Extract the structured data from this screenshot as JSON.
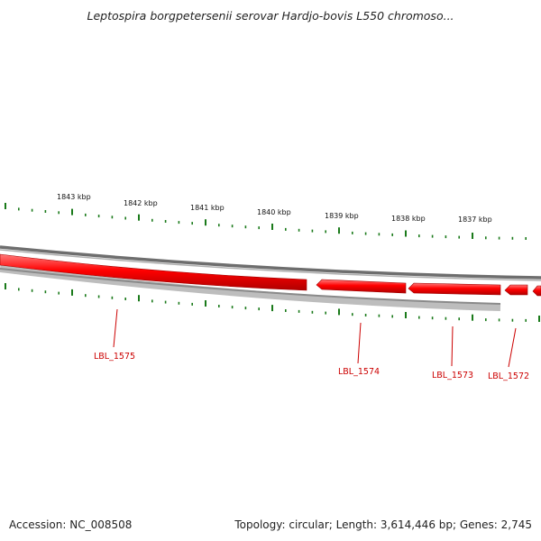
{
  "title": "Leptospira borgpetersenii serovar Hardjo-bovis L550 chromoso...",
  "accession_label": "Accession: NC_008508",
  "summary_label": "Topology: circular; Length: 3,614,446 bp; Genes: 2,745",
  "colors": {
    "gene": "#ff0000",
    "gene_dark": "#c80000",
    "tick": "#1a7a1a",
    "label": "#cc0000",
    "backbone_top": "#808080",
    "backbone_bottom": "#bdbdbd"
  },
  "kbp_labels": [
    "1843 kbp",
    "1842 kbp",
    "1841 kbp",
    "1840 kbp",
    "1839 kbp",
    "1838 kbp",
    "1837 kbp"
  ],
  "genes": [
    {
      "name": "LBL_1575"
    },
    {
      "name": "LBL_1574"
    },
    {
      "name": "LBL_1573"
    },
    {
      "name": "LBL_1572"
    }
  ]
}
